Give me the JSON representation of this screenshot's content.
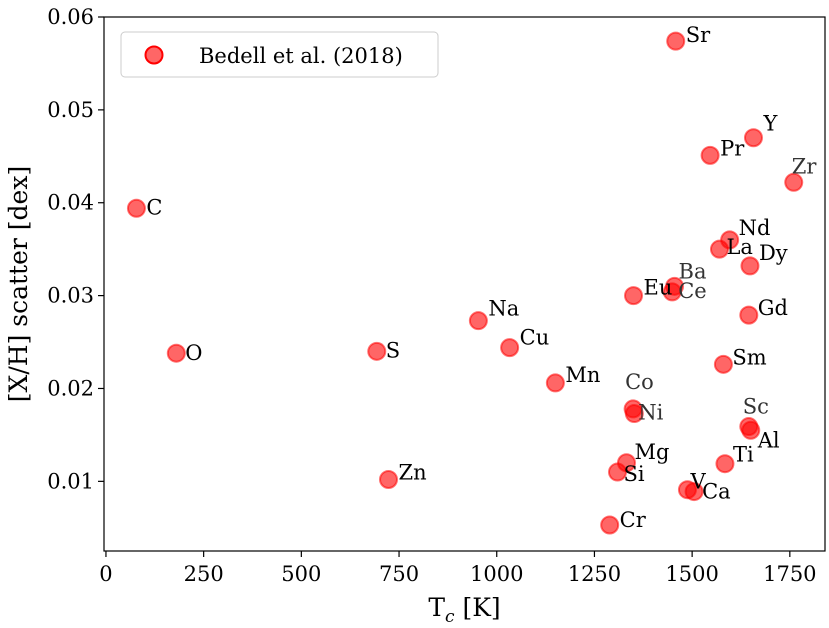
{
  "chart_data": {
    "type": "scatter",
    "xlabel": "T",
    "xlabel_sub": "c",
    "xlabel_unit": " [K]",
    "ylabel": "[X/H] scatter [dex]",
    "xlim": [
      -5,
      1840
    ],
    "ylim": [
      0.0025,
      0.06
    ],
    "x_ticks": [
      0,
      250,
      500,
      750,
      1000,
      1250,
      1500,
      1750
    ],
    "y_ticks": [
      0.01,
      0.02,
      0.03,
      0.04,
      0.05,
      0.06
    ],
    "x_tick_labels": [
      "0",
      "250",
      "500",
      "750",
      "1000",
      "1250",
      "1500",
      "1750"
    ],
    "y_tick_labels": [
      "0.01",
      "0.02",
      "0.03",
      "0.04",
      "0.05",
      "0.06"
    ],
    "grid": false,
    "legend": {
      "position": "top-left",
      "entries": [
        "Bedell et al. (2018)"
      ]
    },
    "marker_color": "#ff0000",
    "series": [
      {
        "name": "Bedell et al. (2018)",
        "points": [
          {
            "label": "C",
            "x": 78,
            "y": 0.0394
          },
          {
            "label": "O",
            "x": 180,
            "y": 0.0238
          },
          {
            "label": "S",
            "x": 693,
            "y": 0.024
          },
          {
            "label": "Zn",
            "x": 723,
            "y": 0.0102
          },
          {
            "label": "Na",
            "x": 953,
            "y": 0.0273
          },
          {
            "label": "Cu",
            "x": 1033,
            "y": 0.0244
          },
          {
            "label": "Mn",
            "x": 1150,
            "y": 0.0206
          },
          {
            "label": "Cr",
            "x": 1289,
            "y": 0.0053
          },
          {
            "label": "Si",
            "x": 1309,
            "y": 0.011
          },
          {
            "label": "Mg",
            "x": 1332,
            "y": 0.012
          },
          {
            "label": "Co",
            "x": 1349,
            "y": 0.0178
          },
          {
            "label": "Ni",
            "x": 1352,
            "y": 0.0173
          },
          {
            "label": "Eu",
            "x": 1350,
            "y": 0.03
          },
          {
            "label": "Ce",
            "x": 1449,
            "y": 0.0304
          },
          {
            "label": "Ba",
            "x": 1455,
            "y": 0.031
          },
          {
            "label": "Sr",
            "x": 1458,
            "y": 0.0574
          },
          {
            "label": "V",
            "x": 1488,
            "y": 0.0091
          },
          {
            "label": "Ca",
            "x": 1505,
            "y": 0.0089
          },
          {
            "label": "Pr",
            "x": 1546,
            "y": 0.0451
          },
          {
            "label": "La",
            "x": 1570,
            "y": 0.035
          },
          {
            "label": "Sm",
            "x": 1580,
            "y": 0.0226
          },
          {
            "label": "Ti",
            "x": 1584,
            "y": 0.0119
          },
          {
            "label": "Nd",
            "x": 1596,
            "y": 0.036
          },
          {
            "label": "Sc",
            "x": 1645,
            "y": 0.0159
          },
          {
            "label": "Al",
            "x": 1650,
            "y": 0.0155
          },
          {
            "label": "Gd",
            "x": 1645,
            "y": 0.0279
          },
          {
            "label": "Dy",
            "x": 1648,
            "y": 0.0332
          },
          {
            "label": "Y",
            "x": 1657,
            "y": 0.047
          },
          {
            "label": "Zr",
            "x": 1760,
            "y": 0.0422
          }
        ]
      }
    ]
  }
}
